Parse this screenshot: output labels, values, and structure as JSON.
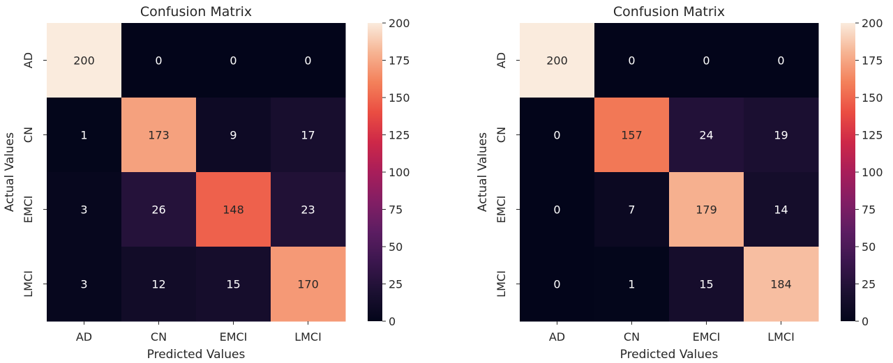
{
  "chart_data": [
    {
      "type": "heatmap",
      "title": "Confusion Matrix",
      "xlabel": "Predicted Values",
      "ylabel": "Actual Values",
      "x_categories": [
        "AD",
        "CN",
        "EMCI",
        "LMCI"
      ],
      "y_categories": [
        "AD",
        "CN",
        "EMCI",
        "LMCI"
      ],
      "values": [
        [
          200,
          0,
          0,
          0
        ],
        [
          1,
          173,
          9,
          17
        ],
        [
          3,
          26,
          148,
          23
        ],
        [
          3,
          12,
          15,
          170
        ]
      ],
      "colorbar": {
        "min": 0,
        "max": 200,
        "ticks": [
          0,
          25,
          50,
          75,
          100,
          125,
          150,
          175,
          200
        ]
      },
      "colormap": "rocket"
    },
    {
      "type": "heatmap",
      "title": "Confusion Matrix",
      "xlabel": "Predicted Values",
      "ylabel": "Actual Values",
      "x_categories": [
        "AD",
        "CN",
        "EMCI",
        "LMCI"
      ],
      "y_categories": [
        "AD",
        "CN",
        "EMCI",
        "LMCI"
      ],
      "values": [
        [
          200,
          0,
          0,
          0
        ],
        [
          0,
          157,
          24,
          19
        ],
        [
          0,
          7,
          179,
          14
        ],
        [
          0,
          1,
          15,
          184
        ]
      ],
      "colorbar": {
        "min": 0,
        "max": 200,
        "ticks": [
          0,
          25,
          50,
          75,
          100,
          125,
          150,
          175,
          200
        ]
      },
      "colormap": "rocket"
    }
  ]
}
